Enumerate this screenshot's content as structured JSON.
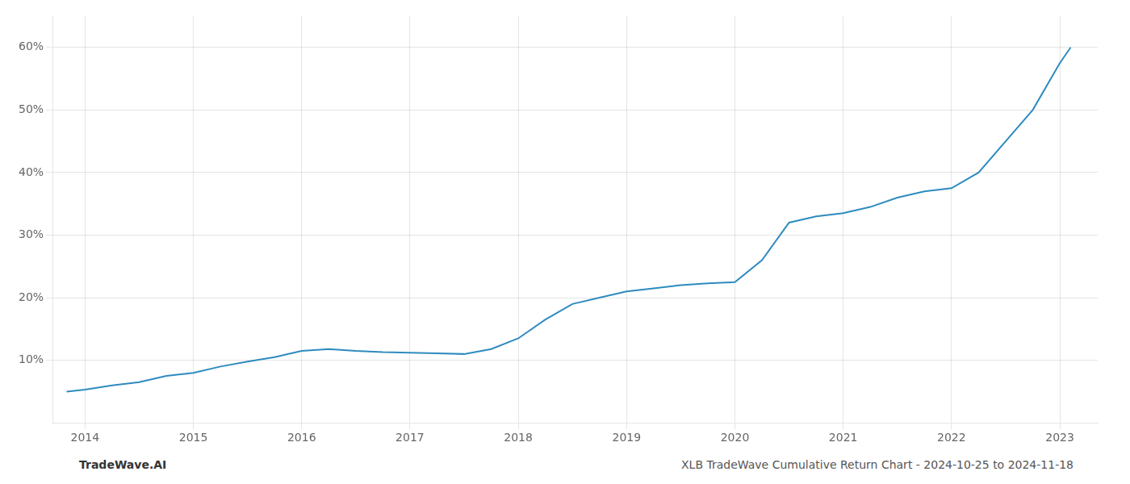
{
  "chart_data": {
    "type": "line",
    "x": [
      2013.83,
      2014.0,
      2014.25,
      2014.5,
      2014.75,
      2015.0,
      2015.25,
      2015.5,
      2015.75,
      2016.0,
      2016.25,
      2016.5,
      2016.75,
      2017.0,
      2017.25,
      2017.5,
      2017.75,
      2018.0,
      2018.25,
      2018.5,
      2018.75,
      2019.0,
      2019.25,
      2019.5,
      2019.75,
      2020.0,
      2020.25,
      2020.5,
      2020.75,
      2021.0,
      2021.25,
      2021.5,
      2021.75,
      2022.0,
      2022.25,
      2022.5,
      2022.75,
      2023.0,
      2023.1
    ],
    "values": [
      5.0,
      5.3,
      6.0,
      6.5,
      7.5,
      8.0,
      9.0,
      9.8,
      10.5,
      11.5,
      11.8,
      11.5,
      11.3,
      11.2,
      11.1,
      11.0,
      11.8,
      13.5,
      16.5,
      19.0,
      20.0,
      21.0,
      21.5,
      22.0,
      22.3,
      22.5,
      26.0,
      32.0,
      33.0,
      33.5,
      34.5,
      36.0,
      37.0,
      37.5,
      40.0,
      45.0,
      50.0,
      57.5,
      60.0
    ],
    "color": "#2e8bc0",
    "xlim": [
      2013.7,
      2023.35
    ],
    "xticks": [
      2014,
      2015,
      2016,
      2017,
      2018,
      2019,
      2020,
      2021,
      2022,
      2023
    ],
    "ylim": [
      0,
      65
    ],
    "yticks": [
      {
        "value": 10,
        "label": "10%"
      },
      {
        "value": 20,
        "label": "20%"
      },
      {
        "value": 30,
        "label": "30%"
      },
      {
        "value": 40,
        "label": "40%"
      },
      {
        "value": 50,
        "label": "50%"
      },
      {
        "value": 60,
        "label": "60%"
      }
    ],
    "grid": true,
    "annotations": [
      "TradeWave.AI",
      "XLB TradeWave Cumulative Return Chart - 2024-10-25 to 2024-11-18"
    ]
  }
}
